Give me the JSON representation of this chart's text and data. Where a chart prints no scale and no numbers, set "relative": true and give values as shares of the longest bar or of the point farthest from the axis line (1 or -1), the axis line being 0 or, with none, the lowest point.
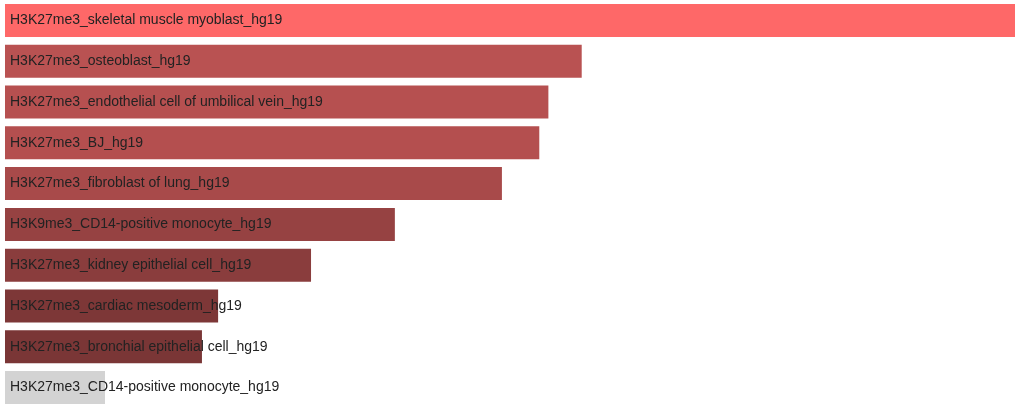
{
  "chart_data": {
    "type": "bar",
    "orientation": "horizontal",
    "relative": true,
    "categories": [
      "H3K27me3_skeletal muscle myoblast_hg19",
      "H3K27me3_osteoblast_hg19",
      "H3K27me3_endothelial cell of umbilical vein_hg19",
      "H3K27me3_BJ_hg19",
      "H3K27me3_fibroblast of lung_hg19",
      "H3K9me3_CD14-positive monocyte_hg19",
      "H3K27me3_kidney epithelial cell_hg19",
      "H3K27me3_cardiac mesoderm_hg19",
      "H3K27me3_bronchial epithelial cell_hg19",
      "H3K27me3_CD14-positive monocyte_hg19"
    ],
    "values": [
      1,
      0.571,
      0.538,
      0.529,
      0.492,
      0.386,
      0.303,
      0.211,
      0.195,
      0.099
    ],
    "colors": [
      "#fe6868",
      "#b95252",
      "#b65050",
      "#b44f4f",
      "#a84a4a",
      "#964242",
      "#8a3d3d",
      "#7d3737",
      "#7a3636",
      "#d3d3d3"
    ],
    "legend": false
  }
}
